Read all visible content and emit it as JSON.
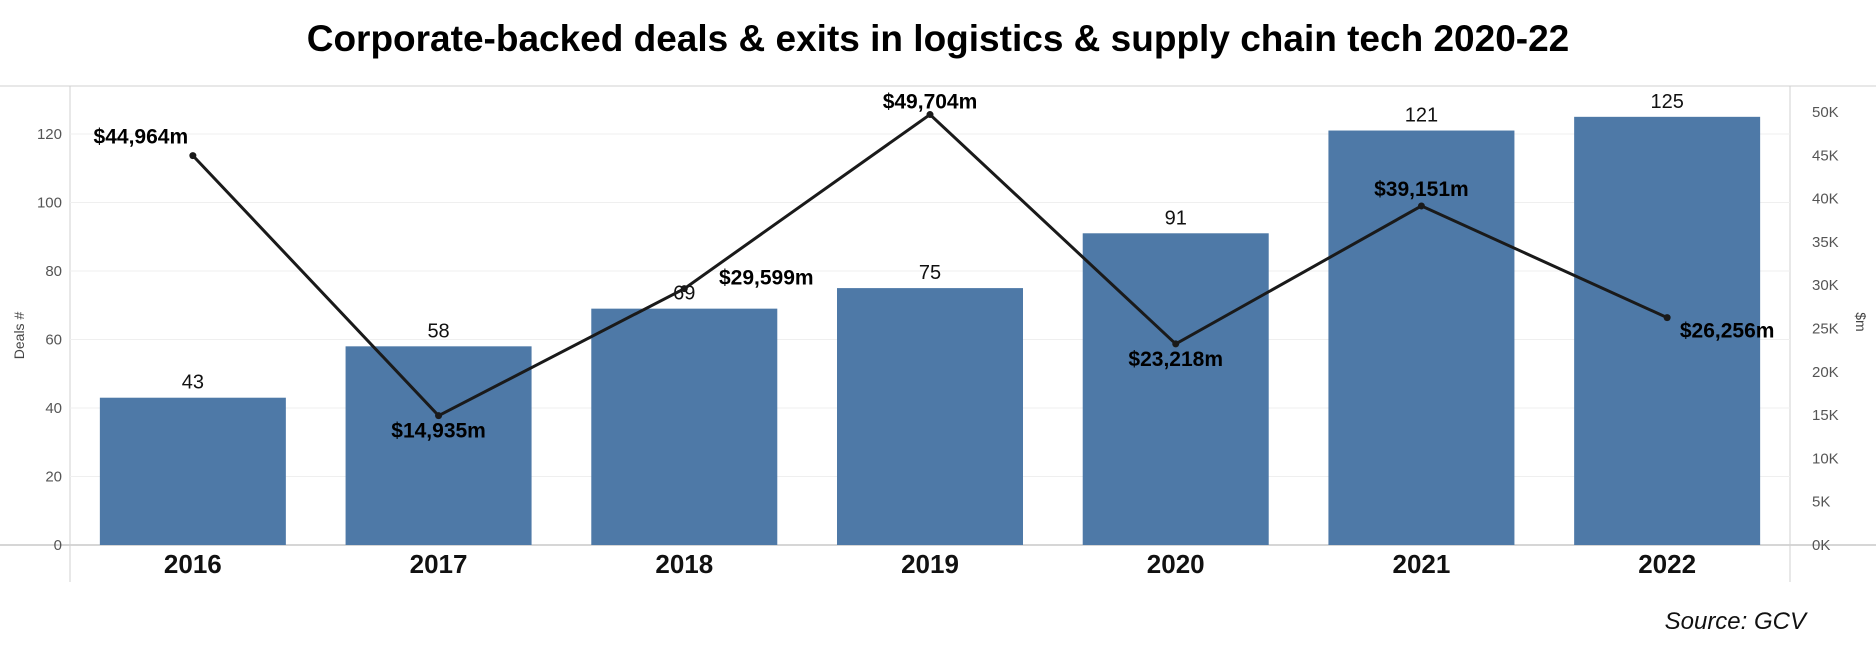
{
  "chart_data": {
    "type": "bar",
    "title": "Corporate-backed deals & exits in logistics & supply chain tech 2020-22",
    "categories": [
      "2016",
      "2017",
      "2018",
      "2019",
      "2020",
      "2021",
      "2022"
    ],
    "series": [
      {
        "type": "bar",
        "axis": "left",
        "values": [
          43,
          58,
          69,
          75,
          91,
          121,
          125
        ],
        "color": "#4e79a7"
      },
      {
        "type": "line",
        "axis": "right",
        "values": [
          44964,
          14935,
          29599,
          49704,
          23218,
          39151,
          26256
        ],
        "labels": [
          "$44,964m",
          "$14,935m",
          "$29,599m",
          "$49,704m",
          "$23,218m",
          "$39,151m",
          "$26,256m"
        ],
        "color": "#1a1a1a"
      }
    ],
    "bar_labels": [
      "43",
      "58",
      "69",
      "75",
      "91",
      "121",
      "125"
    ],
    "y_left": {
      "label": "Deals #",
      "range": [
        0,
        134
      ],
      "ticks": [
        0,
        20,
        40,
        60,
        80,
        100,
        120
      ],
      "tick_labels": [
        "0",
        "20",
        "40",
        "60",
        "80",
        "100",
        "120"
      ]
    },
    "y_right": {
      "label": "$m",
      "range": [
        0,
        53000
      ],
      "ticks": [
        0,
        5000,
        10000,
        15000,
        20000,
        25000,
        30000,
        35000,
        40000,
        45000,
        50000
      ],
      "tick_labels": [
        "0K",
        "5K",
        "10K",
        "15K",
        "20K",
        "25K",
        "30K",
        "35K",
        "40K",
        "45K",
        "50K"
      ]
    },
    "grid": true,
    "legend": "none"
  },
  "source": "Source: GCV"
}
